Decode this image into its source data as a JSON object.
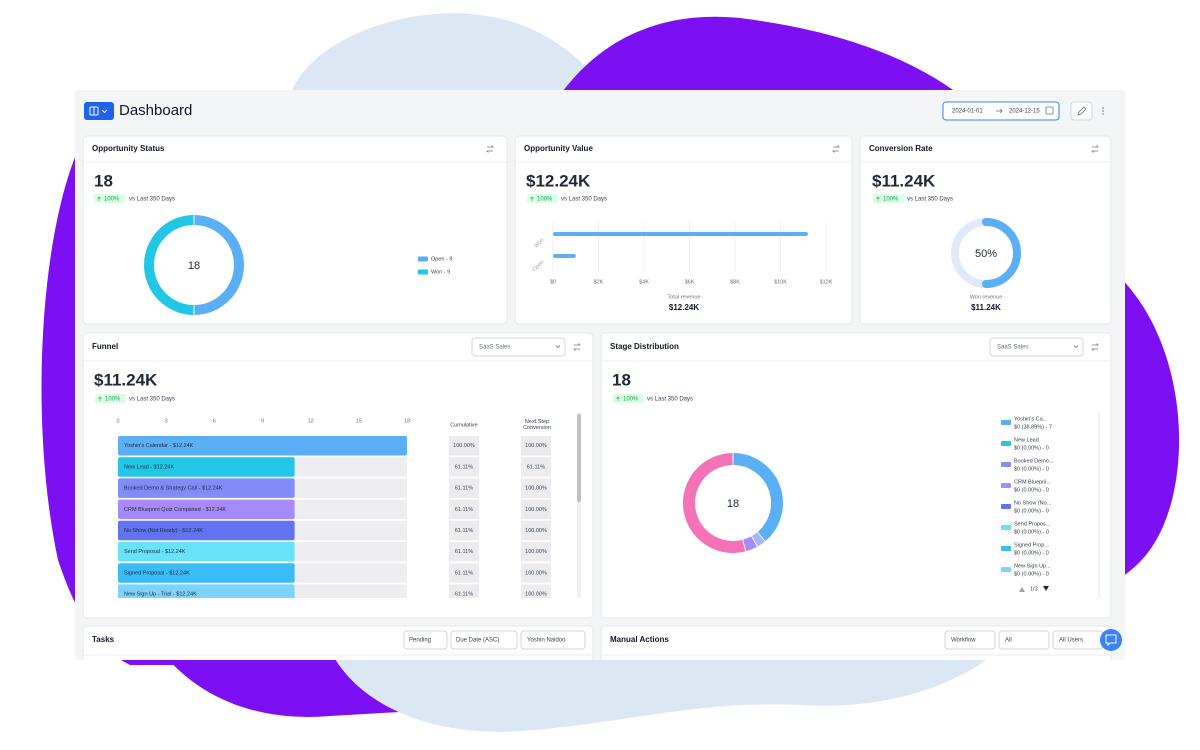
{
  "header": {
    "title": "Dashboard",
    "date_start": "2024-01-01",
    "date_end": "2024-12-15"
  },
  "cards": [
    {
      "title": "Opportunity Status",
      "value": "18",
      "change": "100%",
      "comparison": "vs Last 350 Days"
    },
    {
      "title": "Opportunity Value",
      "value": "$12.24K",
      "change": "100%",
      "comparison": "vs Last 350 Days"
    },
    {
      "title": "Conversion Rate",
      "value": "$11.24K",
      "change": "100%",
      "comparison": "vs Last 350 Days"
    },
    {
      "title": "Funnel",
      "filter": "SaaS Sales",
      "value": "$11.24K",
      "change": "100%",
      "comparison": "vs Last 350 Days"
    },
    {
      "title": "Stage Distribution",
      "filter": "SaaS Sales",
      "value": "18",
      "change": "100%",
      "comparison": "vs Last 350 Days"
    },
    {
      "title": "Tasks",
      "filters": [
        "Pending",
        "Due Date (ASC)",
        "Yoshin Naidoo"
      ]
    },
    {
      "title": "Manual Actions",
      "filters": [
        "Workflow",
        "All",
        "All Users"
      ]
    }
  ],
  "chart_data": [
    {
      "type": "donut",
      "center_label": "18",
      "categories": [
        "Open - 9",
        "Won - 9"
      ],
      "values": [
        9,
        9
      ],
      "colors": [
        "#5bb0f5",
        "#22c7e8"
      ]
    },
    {
      "type": "bar",
      "orientation": "horizontal",
      "categories": [
        "Won",
        "Open"
      ],
      "values": [
        11200,
        1000
      ],
      "color": "#5bb0f5",
      "xlim": [
        0,
        12000
      ],
      "xticks": [
        {
          "value": 0,
          "label": "$0"
        },
        {
          "value": 2000,
          "label": "$2K"
        },
        {
          "value": 4000,
          "label": "$4K"
        },
        {
          "value": 6000,
          "label": "$6K"
        },
        {
          "value": 8000,
          "label": "$8K"
        },
        {
          "value": 10000,
          "label": "$10K"
        },
        {
          "value": 12000,
          "label": "$12K"
        }
      ],
      "grid": true,
      "xlabel": "Total revenue",
      "total": "$12.24K"
    },
    {
      "type": "gauge",
      "value": 50,
      "value_label": "50%",
      "ylim": [
        0,
        100
      ],
      "color": "#5bb0f5",
      "track_color": "#e2e9fb",
      "caption": "Won revenue",
      "total": "$11.24K"
    },
    {
      "type": "funnel",
      "xlim": [
        0,
        18
      ],
      "xticks": [
        0,
        3,
        6,
        9,
        12,
        15,
        18
      ],
      "categories": [
        "Yoshin's Calendar - $12.24K",
        "New Lead - $12.24K",
        "Booked Demo & Strategy Call - $12.24K",
        "CRM Blueprint Quiz Completed - $12.24K",
        "No Show (Not Ready) - $12.24K",
        "Send Proposal - $12.24K",
        "Signed Proposal - $12.24K",
        "New Sign Up - Trial - $12.24K"
      ],
      "values": [
        18,
        11,
        11,
        11,
        11,
        11,
        11,
        11
      ],
      "colors": [
        "#5bb0f5",
        "#22c7e8",
        "#818cf8",
        "#a78bfa",
        "#6173f0",
        "#67e3f9",
        "#38bdf8",
        "#7dd3fc"
      ],
      "cumulative_header": "Cumulative",
      "cumulative": [
        "100.00%",
        "61.11%",
        "61.11%",
        "61.11%",
        "61.11%",
        "61.11%",
        "61.11%",
        "61.11%"
      ],
      "next_header": "Next Step Conversion",
      "next": [
        "100.00%",
        "61.11%",
        "100.00%",
        "100.00%",
        "100.00%",
        "100.00%",
        "100.00%",
        "100.00%"
      ]
    },
    {
      "type": "donut",
      "center_label": "18",
      "categories": [
        "Yoshin's Ca...",
        "New Lead",
        "Booked Demo...",
        "CRM Blueprii...",
        "No Show (No...",
        "Send Propos...",
        "Signed Prop...",
        "New Sign Up..."
      ],
      "value_labels": [
        "$0 (38.89%) - 7",
        "$0 (0.00%) - 0",
        "$0 (0.00%) - 0",
        "$0 (0.00%) - 0",
        "$0 (0.00%) - 0",
        "$0 (0.00%) - 0",
        "$0 (0.00%) - 0",
        "$0 (0.00%) - 0"
      ],
      "values": [
        38.89,
        0,
        0,
        0,
        0,
        0,
        0,
        0
      ],
      "colors": [
        "#5bb0f5",
        "#22c7e8",
        "#818cf8",
        "#a78bfa",
        "#6173f0",
        "#67e3f9",
        "#38bdf8",
        "#7dd3fc"
      ],
      "additional_segments": [
        {
          "color": "#a5b4fc",
          "value": 3
        },
        {
          "color": "#a78bfa",
          "value": 4
        },
        {
          "color": "#f472b6",
          "value": 54.11
        }
      ],
      "page": "1/3"
    }
  ]
}
